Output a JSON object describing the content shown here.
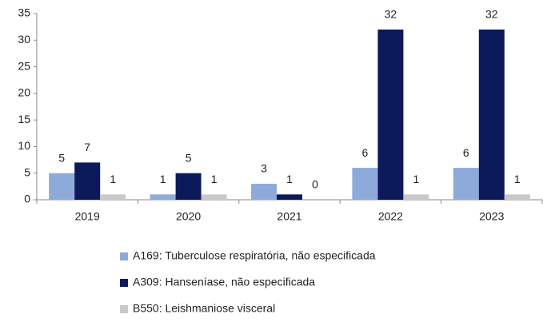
{
  "chart_data": {
    "type": "bar",
    "categories": [
      "2019",
      "2020",
      "2021",
      "2022",
      "2023"
    ],
    "series": [
      {
        "name": "A169: Tuberculose respiratória, não especificada",
        "color": "#8eaadb",
        "values": [
          5,
          1,
          3,
          6,
          6
        ]
      },
      {
        "name": "A309: Hanseníase, não especificada",
        "color": "#0c1a5c",
        "values": [
          7,
          5,
          1,
          32,
          32
        ]
      },
      {
        "name": "B550: Leishmaniose visceral",
        "color": "#c9c9c9",
        "values": [
          1,
          1,
          0,
          1,
          1
        ]
      }
    ],
    "ylim": [
      0,
      35
    ],
    "yticks": [
      0,
      5,
      10,
      15,
      20,
      25,
      30,
      35
    ],
    "grid": false,
    "legend": "bottom"
  }
}
